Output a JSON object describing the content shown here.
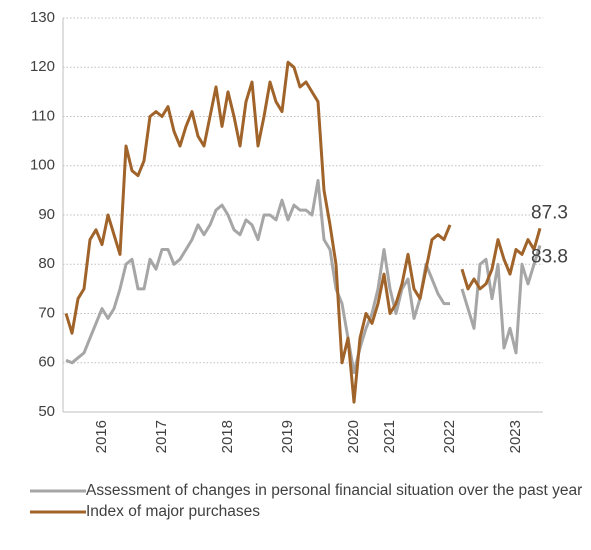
{
  "chart_data": {
    "type": "line",
    "categories": [
      null,
      null,
      null,
      null,
      null,
      null,
      "2016",
      null,
      null,
      null,
      null,
      null,
      null,
      null,
      null,
      null,
      "2017",
      null,
      null,
      null,
      null,
      null,
      null,
      null,
      null,
      null,
      null,
      "2018",
      null,
      null,
      null,
      null,
      null,
      null,
      null,
      null,
      null,
      "2019",
      null,
      null,
      null,
      null,
      null,
      null,
      null,
      null,
      null,
      null,
      "2020",
      null,
      null,
      null,
      null,
      null,
      "2021",
      null,
      null,
      null,
      null,
      null,
      null,
      null,
      null,
      null,
      "2022",
      null,
      null,
      null,
      null,
      null,
      null,
      null,
      null,
      null,
      null,
      "2023",
      null,
      null,
      null,
      null
    ],
    "series": [
      {
        "name": "Assessment of changes in personal financial situation over the past year",
        "color": "#a6a6a6",
        "values": [
          60.5,
          60,
          61,
          62,
          65,
          68,
          71,
          69,
          71,
          75,
          80,
          81,
          75,
          75,
          81,
          79,
          83,
          83,
          80,
          81,
          83,
          85,
          88,
          86,
          88,
          91,
          92,
          90,
          87,
          86,
          89,
          88,
          85,
          90,
          90,
          89,
          93,
          89,
          92,
          91,
          91,
          90,
          97,
          85,
          83,
          75,
          72,
          65,
          58,
          63,
          67,
          70,
          75,
          83,
          75,
          70,
          75,
          77,
          69,
          73,
          80,
          77,
          74,
          72,
          72,
          null,
          75,
          71,
          67,
          80,
          81,
          73,
          80,
          63,
          67,
          62,
          80,
          76,
          80,
          83.8
        ]
      },
      {
        "name": "Index of major purchases",
        "color": "#a0632a",
        "values": [
          70,
          66,
          73,
          75,
          85,
          87,
          84,
          90,
          86,
          82,
          104,
          99,
          98,
          101,
          110,
          111,
          110,
          112,
          107,
          104,
          108,
          111,
          106,
          104,
          110,
          116,
          108,
          115,
          110,
          104,
          113,
          117,
          104,
          110,
          117,
          113,
          111,
          121,
          120,
          116,
          117,
          115,
          113,
          95,
          88,
          80,
          60,
          65,
          52,
          65,
          70,
          68,
          72,
          78,
          70,
          72,
          76,
          82,
          75,
          73,
          79,
          85,
          86,
          85,
          88,
          null,
          79,
          75,
          77,
          75,
          76,
          79,
          85,
          81,
          78,
          83,
          82,
          85,
          83,
          87.3
        ]
      }
    ],
    "ylim": [
      50,
      130
    ],
    "yticks": [
      50,
      60,
      70,
      80,
      90,
      100,
      110,
      120,
      130
    ],
    "grid": true
  }
}
